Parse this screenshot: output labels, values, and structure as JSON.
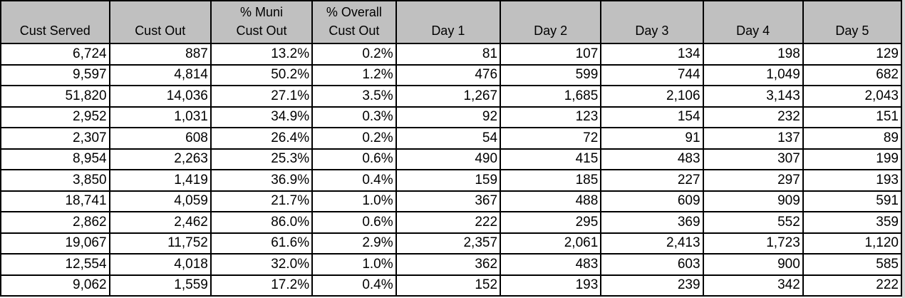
{
  "table": {
    "columns": [
      {
        "lines": [
          "Cust Served"
        ]
      },
      {
        "lines": [
          "Cust Out"
        ]
      },
      {
        "lines": [
          "% Muni",
          "Cust Out"
        ]
      },
      {
        "lines": [
          "% Overall",
          "Cust Out"
        ]
      },
      {
        "lines": [
          "Day 1"
        ]
      },
      {
        "lines": [
          "Day 2"
        ]
      },
      {
        "lines": [
          "Day 3"
        ]
      },
      {
        "lines": [
          "Day 4"
        ]
      },
      {
        "lines": [
          "Day 5"
        ]
      }
    ],
    "rows": [
      [
        "6,724",
        "887",
        "13.2%",
        "0.2%",
        "81",
        "107",
        "134",
        "198",
        "129"
      ],
      [
        "9,597",
        "4,814",
        "50.2%",
        "1.2%",
        "476",
        "599",
        "744",
        "1,049",
        "682"
      ],
      [
        "51,820",
        "14,036",
        "27.1%",
        "3.5%",
        "1,267",
        "1,685",
        "2,106",
        "3,143",
        "2,043"
      ],
      [
        "2,952",
        "1,031",
        "34.9%",
        "0.3%",
        "92",
        "123",
        "154",
        "232",
        "151"
      ],
      [
        "2,307",
        "608",
        "26.4%",
        "0.2%",
        "54",
        "72",
        "91",
        "137",
        "89"
      ],
      [
        "8,954",
        "2,263",
        "25.3%",
        "0.6%",
        "490",
        "415",
        "483",
        "307",
        "199"
      ],
      [
        "3,850",
        "1,419",
        "36.9%",
        "0.4%",
        "159",
        "185",
        "227",
        "297",
        "193"
      ],
      [
        "18,741",
        "4,059",
        "21.7%",
        "1.0%",
        "367",
        "488",
        "609",
        "909",
        "591"
      ],
      [
        "2,862",
        "2,462",
        "86.0%",
        "0.6%",
        "222",
        "295",
        "369",
        "552",
        "359"
      ],
      [
        "19,067",
        "11,752",
        "61.6%",
        "2.9%",
        "2,357",
        "2,061",
        "2,413",
        "1,723",
        "1,120"
      ],
      [
        "12,554",
        "4,018",
        "32.0%",
        "1.0%",
        "362",
        "483",
        "603",
        "900",
        "585"
      ],
      [
        "9,062",
        "1,559",
        "17.2%",
        "0.4%",
        "152",
        "193",
        "239",
        "342",
        "222"
      ]
    ]
  },
  "colors": {
    "header_bg": "#c0c0c0",
    "grid": "#000000",
    "cell_bg": "#ffffff"
  }
}
